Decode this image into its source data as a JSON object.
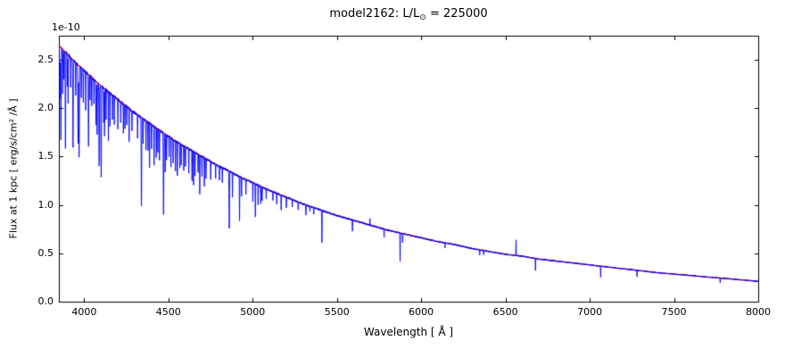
{
  "figure": {
    "title_prefix": "model2162: L/L",
    "title_sub": "⊙",
    "title_suffix": " = 225000",
    "offset_label": "1e-10",
    "xlabel": "Wavelength [ Å ]",
    "ylabel": "Flux at 1 kpc [ erg/s/cm² /Å ]"
  },
  "chart_data": {
    "type": "line",
    "title": "model2162: L/L⊙ = 225000",
    "xlabel": "Wavelength [ Å ]",
    "ylabel": "Flux at 1 kpc [ erg/s/cm² /Å ]",
    "y_scale_factor": "1e-10",
    "xlim": [
      3850,
      8000
    ],
    "ylim": [
      0,
      2.75
    ],
    "x_ticks": [
      4000,
      4500,
      5000,
      5500,
      6000,
      6500,
      7000,
      7500,
      8000
    ],
    "x_tick_labels": [
      "4000",
      "4500",
      "5000",
      "5500",
      "6000",
      "6500",
      "7000",
      "7500",
      "8000"
    ],
    "y_ticks": [
      0.0,
      0.5,
      1.0,
      1.5,
      2.0,
      2.5
    ],
    "y_tick_labels": [
      "0.0",
      "0.5",
      "1.0",
      "1.5",
      "2.0",
      "2.5"
    ],
    "grid": false,
    "legend": null,
    "colors": {
      "spectrum": "#0000ff",
      "continuum": "#ff0000",
      "axes": "#000000"
    },
    "series": [
      {
        "name": "continuum",
        "color": "#ff0000",
        "points": [
          [
            3850,
            2.65
          ],
          [
            3900,
            2.56
          ],
          [
            3950,
            2.47
          ],
          [
            4000,
            2.39
          ],
          [
            4050,
            2.31
          ],
          [
            4100,
            2.23
          ],
          [
            4150,
            2.16
          ],
          [
            4200,
            2.09
          ],
          [
            4250,
            2.02
          ],
          [
            4300,
            1.95
          ],
          [
            4350,
            1.89
          ],
          [
            4400,
            1.83
          ],
          [
            4450,
            1.77
          ],
          [
            4500,
            1.71
          ],
          [
            4550,
            1.65
          ],
          [
            4600,
            1.6
          ],
          [
            4650,
            1.55
          ],
          [
            4700,
            1.5
          ],
          [
            4750,
            1.45
          ],
          [
            4800,
            1.4
          ],
          [
            4850,
            1.36
          ],
          [
            4900,
            1.31
          ],
          [
            4950,
            1.27
          ],
          [
            5000,
            1.23
          ],
          [
            5100,
            1.15
          ],
          [
            5200,
            1.08
          ],
          [
            5300,
            1.01
          ],
          [
            5400,
            0.95
          ],
          [
            5500,
            0.89
          ],
          [
            5600,
            0.84
          ],
          [
            5700,
            0.79
          ],
          [
            5800,
            0.74
          ],
          [
            5900,
            0.7
          ],
          [
            6000,
            0.66
          ],
          [
            6100,
            0.62
          ],
          [
            6200,
            0.59
          ],
          [
            6300,
            0.55
          ],
          [
            6400,
            0.52
          ],
          [
            6500,
            0.49
          ],
          [
            6600,
            0.47
          ],
          [
            6700,
            0.44
          ],
          [
            6800,
            0.42
          ],
          [
            6900,
            0.4
          ],
          [
            7000,
            0.38
          ],
          [
            7100,
            0.36
          ],
          [
            7200,
            0.34
          ],
          [
            7300,
            0.32
          ],
          [
            7400,
            0.3
          ],
          [
            7500,
            0.285
          ],
          [
            7600,
            0.27
          ],
          [
            7700,
            0.255
          ],
          [
            7800,
            0.24
          ],
          [
            7900,
            0.225
          ],
          [
            8000,
            0.21
          ]
        ]
      },
      {
        "name": "spectrum",
        "color": "#0000ff",
        "based_on": "continuum",
        "absorption_lines": [
          [
            3856,
            0.55
          ],
          [
            3862,
            0.95
          ],
          [
            3872,
            0.45
          ],
          [
            3880,
            0.3
          ],
          [
            3889,
            1.0
          ],
          [
            3900,
            0.35
          ],
          [
            3905,
            0.5
          ],
          [
            3920,
            0.3
          ],
          [
            3934,
            0.9
          ],
          [
            3950,
            0.35
          ],
          [
            3964,
            0.8
          ],
          [
            3970,
            0.95
          ],
          [
            3983,
            0.3
          ],
          [
            3995,
            0.35
          ],
          [
            4009,
            0.4
          ],
          [
            4026,
            0.75
          ],
          [
            4035,
            0.25
          ],
          [
            4045,
            0.3
          ],
          [
            4058,
            0.25
          ],
          [
            4070,
            0.45
          ],
          [
            4077,
            0.55
          ],
          [
            4089,
            0.85
          ],
          [
            4101,
            0.95
          ],
          [
            4116,
            0.35
          ],
          [
            4121,
            0.5
          ],
          [
            4130,
            0.3
          ],
          [
            4144,
            0.5
          ],
          [
            4153,
            0.35
          ],
          [
            4168,
            0.25
          ],
          [
            4179,
            0.3
          ],
          [
            4200,
            0.3
          ],
          [
            4217,
            0.2
          ],
          [
            4233,
            0.3
          ],
          [
            4242,
            0.25
          ],
          [
            4253,
            0.2
          ],
          [
            4267,
            0.35
          ],
          [
            4284,
            0.2
          ],
          [
            4317,
            0.25
          ],
          [
            4340,
            0.92
          ],
          [
            4350,
            0.25
          ],
          [
            4367,
            0.3
          ],
          [
            4379,
            0.3
          ],
          [
            4388,
            0.45
          ],
          [
            4400,
            0.25
          ],
          [
            4415,
            0.4
          ],
          [
            4428,
            0.3
          ],
          [
            4437,
            0.25
          ],
          [
            4447,
            0.3
          ],
          [
            4471,
            0.85
          ],
          [
            4481,
            0.4
          ],
          [
            4489,
            0.25
          ],
          [
            4504,
            0.2
          ],
          [
            4515,
            0.3
          ],
          [
            4528,
            0.25
          ],
          [
            4542,
            0.3
          ],
          [
            4553,
            0.35
          ],
          [
            4568,
            0.25
          ],
          [
            4576,
            0.2
          ],
          [
            4591,
            0.25
          ],
          [
            4601,
            0.2
          ],
          [
            4621,
            0.25
          ],
          [
            4640,
            0.3
          ],
          [
            4649,
            0.35
          ],
          [
            4658,
            0.25
          ],
          [
            4676,
            0.2
          ],
          [
            4686,
            0.4
          ],
          [
            4699,
            0.2
          ],
          [
            4713,
            0.3
          ],
          [
            4723,
            0.2
          ],
          [
            4751,
            0.18
          ],
          [
            4780,
            0.15
          ],
          [
            4803,
            0.15
          ],
          [
            4820,
            0.15
          ],
          [
            4861,
            0.6
          ],
          [
            4880,
            0.25
          ],
          [
            4922,
            0.45
          ],
          [
            4934,
            0.2
          ],
          [
            4960,
            0.15
          ],
          [
            5001,
            0.2
          ],
          [
            5016,
            0.35
          ],
          [
            5032,
            0.2
          ],
          [
            5048,
            0.18
          ],
          [
            5056,
            0.15
          ],
          [
            5080,
            0.1
          ],
          [
            5120,
            0.1
          ],
          [
            5143,
            0.12
          ],
          [
            5169,
            0.15
          ],
          [
            5200,
            0.1
          ],
          [
            5235,
            0.08
          ],
          [
            5270,
            0.08
          ],
          [
            5316,
            0.1
          ],
          [
            5340,
            0.06
          ],
          [
            5363,
            0.06
          ],
          [
            5411,
            0.33
          ],
          [
            5592,
            0.12
          ],
          [
            5780,
            0.08
          ],
          [
            5875,
            0.3
          ],
          [
            5890,
            0.1
          ],
          [
            6141,
            0.05
          ],
          [
            6347,
            0.06
          ],
          [
            6371,
            0.05
          ],
          [
            6678,
            0.13
          ],
          [
            7065,
            0.12
          ],
          [
            7281,
            0.07
          ],
          [
            7774,
            0.05
          ]
        ],
        "emission_lines": [
          [
            5696,
            0.06
          ],
          [
            6563,
            0.16
          ]
        ]
      }
    ]
  }
}
